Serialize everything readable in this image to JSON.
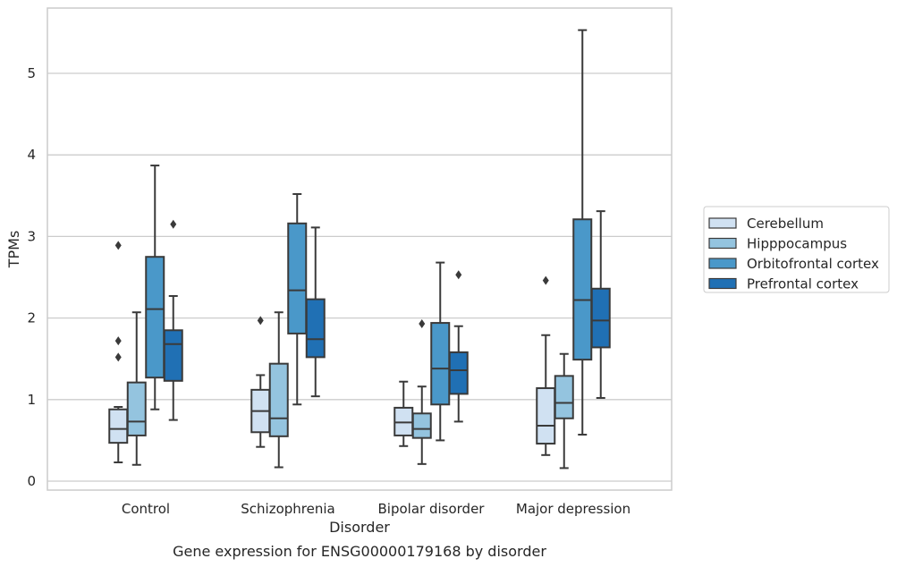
{
  "chart_data": {
    "type": "box",
    "title": "",
    "caption": "Gene expression for ENSG00000179168 by disorder",
    "xlabel": "Disorder",
    "ylabel": "TPMs",
    "ylim": [
      -0.1,
      5.8
    ],
    "yticks": [
      0,
      1,
      2,
      3,
      4,
      5
    ],
    "grid": "horizontal",
    "legend_position": "right",
    "categories": [
      "Control",
      "Schizophrenia",
      "Bipolar disorder",
      "Major depression"
    ],
    "series": [
      {
        "name": "Cerebellum",
        "color": "#d0e1f2",
        "boxes": [
          {
            "min": 0.23,
            "q1": 0.47,
            "median": 0.64,
            "q3": 0.88,
            "max": 0.91,
            "outliers": [
              2.89,
              1.72,
              1.52
            ]
          },
          {
            "min": 0.42,
            "q1": 0.6,
            "median": 0.86,
            "q3": 1.12,
            "max": 1.3,
            "outliers": [
              1.97
            ]
          },
          {
            "min": 0.43,
            "q1": 0.56,
            "median": 0.72,
            "q3": 0.9,
            "max": 1.22,
            "outliers": []
          },
          {
            "min": 0.32,
            "q1": 0.46,
            "median": 0.68,
            "q3": 1.14,
            "max": 1.79,
            "outliers": [
              2.46
            ]
          }
        ]
      },
      {
        "name": "Hipppocampus",
        "color": "#94c4df",
        "boxes": [
          {
            "min": 0.2,
            "q1": 0.56,
            "median": 0.73,
            "q3": 1.21,
            "max": 2.07,
            "outliers": []
          },
          {
            "min": 0.17,
            "q1": 0.55,
            "median": 0.77,
            "q3": 1.44,
            "max": 2.07,
            "outliers": []
          },
          {
            "min": 0.21,
            "q1": 0.53,
            "median": 0.64,
            "q3": 0.83,
            "max": 1.16,
            "outliers": [
              1.93
            ]
          },
          {
            "min": 0.16,
            "q1": 0.77,
            "median": 0.96,
            "q3": 1.29,
            "max": 1.56,
            "outliers": []
          }
        ]
      },
      {
        "name": "Orbitofrontal cortex",
        "color": "#4a98c9",
        "boxes": [
          {
            "min": 0.88,
            "q1": 1.27,
            "median": 2.11,
            "q3": 2.75,
            "max": 3.87,
            "outliers": []
          },
          {
            "min": 0.94,
            "q1": 1.81,
            "median": 2.34,
            "q3": 3.16,
            "max": 3.52,
            "outliers": []
          },
          {
            "min": 0.5,
            "q1": 0.94,
            "median": 1.38,
            "q3": 1.94,
            "max": 2.68,
            "outliers": []
          },
          {
            "min": 0.57,
            "q1": 1.49,
            "median": 2.22,
            "q3": 3.21,
            "max": 5.53,
            "outliers": []
          }
        ]
      },
      {
        "name": "Prefrontal cortex",
        "color": "#2070b4",
        "boxes": [
          {
            "min": 0.75,
            "q1": 1.23,
            "median": 1.68,
            "q3": 1.85,
            "max": 2.27,
            "outliers": [
              3.15
            ]
          },
          {
            "min": 1.04,
            "q1": 1.52,
            "median": 1.74,
            "q3": 2.23,
            "max": 3.11,
            "outliers": []
          },
          {
            "min": 0.73,
            "q1": 1.07,
            "median": 1.36,
            "q3": 1.58,
            "max": 1.9,
            "outliers": [
              2.53
            ]
          },
          {
            "min": 1.02,
            "q1": 1.64,
            "median": 1.97,
            "q3": 2.36,
            "max": 3.31,
            "outliers": []
          }
        ]
      }
    ]
  }
}
